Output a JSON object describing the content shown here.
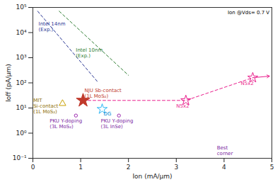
{
  "chart_data": {
    "type": "scatter",
    "xlabel": "Ion (mA/μm)",
    "ylabel": "Ioff (pA/μm)",
    "log": "y",
    "grid": false,
    "xlim": [
      0,
      5
    ],
    "ylim": [
      0.1,
      100000
    ],
    "xticks": [
      0,
      1,
      2,
      3,
      4,
      5
    ],
    "yticks": [
      {
        "value": 0.1,
        "label": "10⁻¹"
      },
      {
        "value": 1,
        "label": "10⁰"
      },
      {
        "value": 10,
        "label": "10¹"
      },
      {
        "value": 100,
        "label": "10²"
      },
      {
        "value": 1000,
        "label": "10³"
      },
      {
        "value": 10000,
        "label": "10⁴"
      },
      {
        "value": 100000,
        "label": "10⁵"
      }
    ],
    "lines": [
      {
        "x": [
          0.1,
          1.35
        ],
        "y": [
          70794.57843841374,
          112.20184543019634
        ],
        "color": "#283593",
        "line_style": "dashed"
      },
      {
        "x": [
          0.55,
          2.0
        ],
        "y": [
          70794.57843841374,
          199.52623149688787
        ],
        "color": "#2e7d32",
        "line_style": "dashed"
      },
      {
        "x": [
          1.05,
          3.2,
          4.6
        ],
        "y": [
          20,
          20,
          160
        ],
        "color": "#e91e8c",
        "line_style": "dashed"
      }
    ],
    "arrows": [
      {
        "x1": 4.6,
        "y1": 160,
        "x2": 4.95,
        "y2": 185,
        "color": "#e91e8c"
      }
    ],
    "points": [
      {
        "x": 1.05,
        "y": 20,
        "color": "#c0392b",
        "marker": "filled_star"
      },
      {
        "x": 0.62,
        "y": 15,
        "color": "#c8a000",
        "marker": "open_triangle"
      },
      {
        "x": 1.45,
        "y": 9,
        "color": "#29b6f6",
        "marker": "open_star"
      },
      {
        "x": 3.2,
        "y": 20,
        "color": "#e91e8c",
        "marker": "open_star"
      },
      {
        "x": 4.6,
        "y": 160,
        "color": "#e91e8c",
        "marker": "open_star"
      },
      {
        "x": 0.9,
        "y": 5.0,
        "color": "#9c27b0",
        "marker": "open_circle"
      },
      {
        "x": 1.8,
        "y": 5.0,
        "color": "#9c27b0",
        "marker": "open_circle"
      }
    ],
    "annotations": [
      {
        "text": "Intel 14nm\n(Exp.)",
        "x": 0.12,
        "y": 28183.829312644535,
        "color": "#283593"
      },
      {
        "text": "Intel 10nm\n(Exp.)",
        "x": 0.9,
        "y": 2511.886431509582,
        "color": "#2e7d32"
      },
      {
        "text": "NJU Sb-contact\n(1L MoS₂)",
        "x": 1.08,
        "y": 26,
        "color": "#c0392b"
      },
      {
        "text": "MIT\nSi-contact\n(1L MoS₂)",
        "x": 0.01,
        "y": 12,
        "color": "#8d6e00"
      },
      {
        "text": "DG",
        "x": 1.48,
        "y": 7.5,
        "color": "#0288d1"
      },
      {
        "text": "N5x2",
        "x": 3.0,
        "y": 15,
        "color": "#e91e8c"
      },
      {
        "text": "N5x2",
        "x": 4.35,
        "y": 120,
        "color": "#e91e8c"
      },
      {
        "text": "PKU Y-doping\n(3L MoS₂)",
        "x": 0.35,
        "y": 3.8,
        "color": "#7b1fa2"
      },
      {
        "text": "PKU Y-doping\n(3L InSe)",
        "x": 1.42,
        "y": 3.8,
        "color": "#7b1fa2"
      },
      {
        "text": "Best\ncorner",
        "x": 3.85,
        "y": 0.135,
        "color": "#7b1fa2"
      },
      {
        "text": "Ion @Vds= 0.7 V",
        "x": 4.95,
        "y": 75857.75750291836,
        "color": "#000000"
      }
    ]
  }
}
